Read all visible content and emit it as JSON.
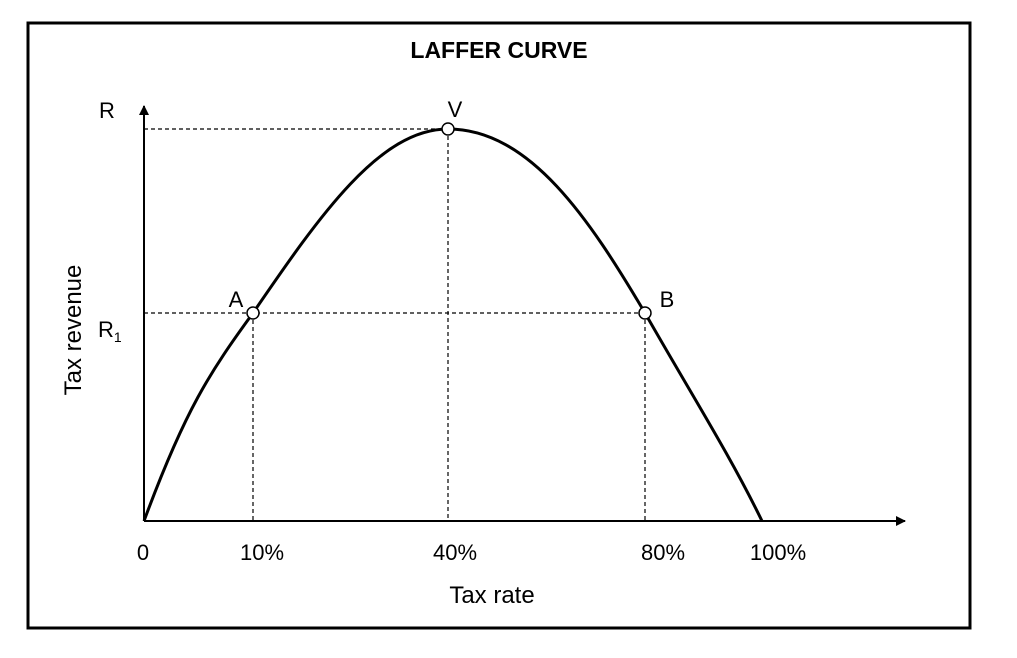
{
  "title": "LAFFER CURVE",
  "y_axis": {
    "top_label": "R",
    "r1_label": "R",
    "r1_subscript": "1",
    "title": "Tax revenue"
  },
  "x_axis": {
    "title": "Tax rate",
    "origin_label": "0",
    "ticks": [
      "10%",
      "40%",
      "80%",
      "100%"
    ]
  },
  "points": {
    "a": "A",
    "v": "V",
    "b": "B"
  }
}
